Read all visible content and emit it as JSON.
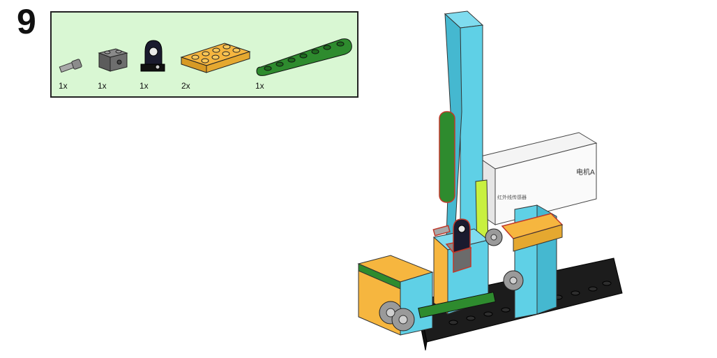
{
  "step": {
    "number": "9"
  },
  "parts_list": {
    "items": [
      {
        "name": "axle-connector",
        "quantity": "1x",
        "color": "#9a9a9a"
      },
      {
        "name": "technic-brick-1x2",
        "quantity": "1x",
        "color": "#6b6b6b"
      },
      {
        "name": "bracket",
        "quantity": "1x",
        "color": "#1a1a2e"
      },
      {
        "name": "plate-2x4",
        "quantity": "2x",
        "color": "#f6b63f"
      },
      {
        "name": "technic-beam-7",
        "quantity": "1x",
        "color": "#2e8b2e"
      }
    ]
  },
  "model": {
    "motor_label": "电机A",
    "sensor_label": "红外线传感器"
  },
  "colors": {
    "panel_bg": "#d9f7d3",
    "azure": "#5fd0e6",
    "lime": "#c8f040",
    "yellow": "#f6b63f",
    "green": "#2e8b2e",
    "black": "#1c1c1c",
    "white": "#f4f4f4"
  }
}
